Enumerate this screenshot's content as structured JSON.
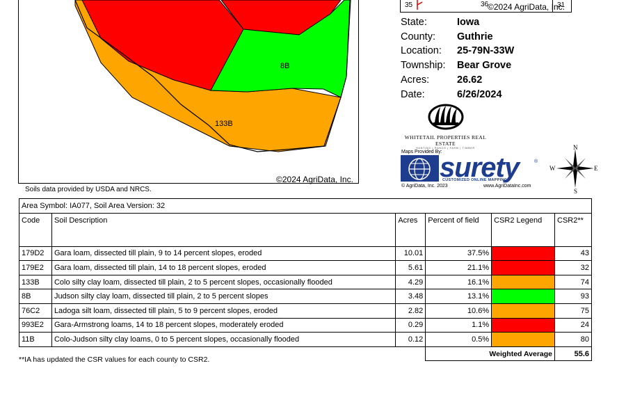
{
  "map": {
    "copyright": "©2024 AgriData, Inc.",
    "labels": [
      "8B",
      "133B"
    ],
    "soils_source": "Soils data provided by USDA and NRCS.",
    "colors": {
      "red": "#ff0000",
      "orange": "#ffa500",
      "green": "#00ff00"
    }
  },
  "inset": {
    "num_left": "35",
    "num_mid": "36",
    "num_right": "31",
    "copyright": "©2024 AgriData, Inc."
  },
  "info": {
    "state_label": "State:",
    "state": "Iowa",
    "county_label": "County:",
    "county": "Guthrie",
    "location_label": "Location:",
    "location": "25-79N-33W",
    "township_label": "Township:",
    "township": "Bear Grove",
    "acres_label": "Acres:",
    "acres": "26.62",
    "date_label": "Date:",
    "date": "6/26/2024"
  },
  "logos": {
    "whitetail_name": "WHITETAIL PROPERTIES REAL ESTATE",
    "whitetail_tag": "HUNTING | RANCH | FARM | TIMBER",
    "maps_provided": "Maps Provided By:",
    "surety_word": "surety",
    "surety_tm": "®",
    "surety_tag": "CUSTOMIZED ONLINE MAPPING",
    "agridata_left": "© AgriData, Inc. 2023",
    "agridata_right": "www.AgriDataInc.com",
    "compass": {
      "n": "N",
      "s": "S",
      "e": "E",
      "w": "W"
    }
  },
  "table": {
    "area_symbol": "Area Symbol: IA077, Soil Area Version: 32",
    "headers": {
      "code": "Code",
      "description": "Soil Description",
      "acres": "Acres",
      "percent": "Percent of field",
      "legend": "CSR2 Legend",
      "csr2": "CSR2**"
    },
    "rows": [
      {
        "code": "179D2",
        "description": "Gara loam, dissected till plain, 9 to 14 percent slopes, eroded",
        "acres": "10.01",
        "percent": "37.5%",
        "legend_color": "#ff0000",
        "csr2": "43"
      },
      {
        "code": "179E2",
        "description": "Gara loam, dissected till plain, 14 to 18 percent slopes, eroded",
        "acres": "5.61",
        "percent": "21.1%",
        "legend_color": "#ff0000",
        "csr2": "32"
      },
      {
        "code": "133B",
        "description": "Colo silty clay loam, dissected till plain, 2 to 5 percent slopes, occasionally flooded",
        "acres": "4.29",
        "percent": "16.1%",
        "legend_color": "#ffa500",
        "csr2": "74"
      },
      {
        "code": "8B",
        "description": "Judson silty clay loam, dissected till plain, 2 to 5 percent slopes",
        "acres": "3.48",
        "percent": "13.1%",
        "legend_color": "#00ff00",
        "csr2": "93"
      },
      {
        "code": "76C2",
        "description": "Ladoga silt loam, dissected till plain, 5 to 9 percent slopes, eroded",
        "acres": "2.82",
        "percent": "10.6%",
        "legend_color": "#ffa500",
        "csr2": "75"
      },
      {
        "code": "993E2",
        "description": "Gara-Armstrong loams, 14 to 18 percent slopes, moderately eroded",
        "acres": "0.29",
        "percent": "1.1%",
        "legend_color": "#ff0000",
        "csr2": "24"
      },
      {
        "code": "11B",
        "description": "Colo-Judson silty clay loams, 0 to 5 percent slopes, occasionally flooded",
        "acres": "0.12",
        "percent": "0.5%",
        "legend_color": "#ffa500",
        "csr2": "80"
      }
    ],
    "weighted_label": "Weighted Average",
    "weighted_value": "55.6"
  },
  "footnote": "**IA has updated the CSR values for each county to CSR2."
}
